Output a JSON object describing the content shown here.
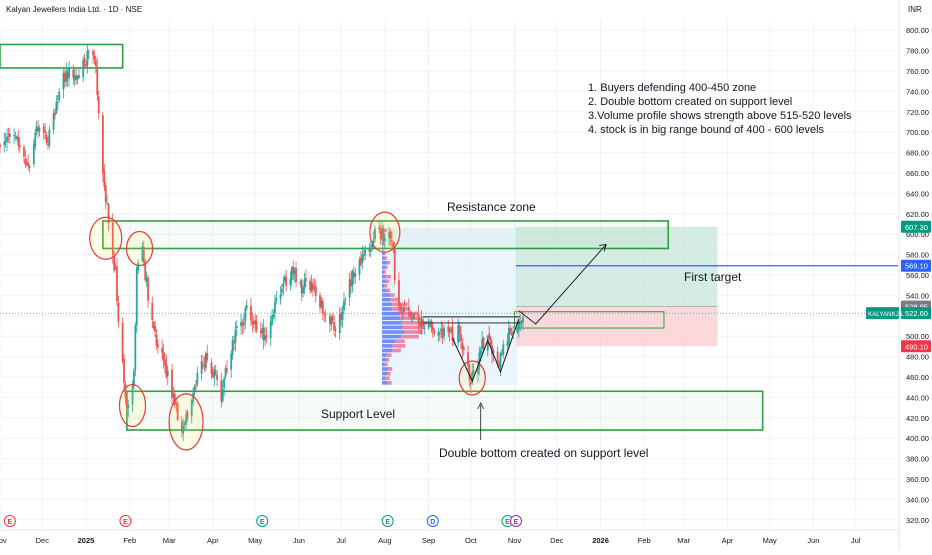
{
  "header": {
    "symbol_title": "Kalyan Jewellers India Ltd. · 1D · NSE",
    "currency": "INR"
  },
  "colors": {
    "up": "#26a69a",
    "down": "#ef5350",
    "zone": "#2ea043",
    "target_line": "#2962ff",
    "ring": "#e53935",
    "long_profit": "#b9e0cf",
    "long_stop": "#f9c7cb",
    "vp_up": "#4b6cf5",
    "vp_down": "#f06292",
    "vp_bg": "#e6f3fb"
  },
  "chart_data": {
    "type": "candlestick",
    "y_axis": {
      "min": 310,
      "max": 810,
      "ticks": [
        "320.00",
        "340.00",
        "360.00",
        "380.00",
        "400.00",
        "420.00",
        "440.00",
        "460.00",
        "480.00",
        "500.00",
        "520.00",
        "540.00",
        "560.00",
        "580.00",
        "600.00",
        "620.00",
        "640.00",
        "660.00",
        "680.00",
        "700.00",
        "720.00",
        "740.00",
        "760.00",
        "780.00",
        "800.00"
      ]
    },
    "x_axis": {
      "start": "2024-11-01",
      "end": "2026-07-31",
      "ticks": [
        {
          "label": "Nov",
          "date": "2024-11-01",
          "bold": false
        },
        {
          "label": "Dec",
          "date": "2024-12-01",
          "bold": false
        },
        {
          "label": "2025",
          "date": "2025-01-01",
          "bold": true
        },
        {
          "label": "Feb",
          "date": "2025-02-01",
          "bold": false
        },
        {
          "label": "Mar",
          "date": "2025-03-01",
          "bold": false
        },
        {
          "label": "Apr",
          "date": "2025-04-01",
          "bold": false
        },
        {
          "label": "May",
          "date": "2025-05-01",
          "bold": false
        },
        {
          "label": "Jun",
          "date": "2025-06-01",
          "bold": false
        },
        {
          "label": "Jul",
          "date": "2025-07-01",
          "bold": false
        },
        {
          "label": "Aug",
          "date": "2025-08-01",
          "bold": false
        },
        {
          "label": "Sep",
          "date": "2025-09-01",
          "bold": false
        },
        {
          "label": "Oct",
          "date": "2025-10-01",
          "bold": false
        },
        {
          "label": "Nov",
          "date": "2025-11-01",
          "bold": false
        },
        {
          "label": "Dec",
          "date": "2025-12-01",
          "bold": false
        },
        {
          "label": "2026",
          "date": "2026-01-01",
          "bold": true
        },
        {
          "label": "Feb",
          "date": "2026-02-01",
          "bold": false
        },
        {
          "label": "Mar",
          "date": "2026-03-01",
          "bold": false
        },
        {
          "label": "Apr",
          "date": "2026-04-01",
          "bold": false
        },
        {
          "label": "May",
          "date": "2026-05-01",
          "bold": false
        },
        {
          "label": "Jun",
          "date": "2026-06-01",
          "bold": false
        },
        {
          "label": "Jul",
          "date": "2026-07-01",
          "bold": false
        }
      ]
    },
    "price_path": [
      {
        "date": "2024-11-01",
        "price": 690
      },
      {
        "date": "2024-11-10",
        "price": 705
      },
      {
        "date": "2024-11-20",
        "price": 662
      },
      {
        "date": "2024-11-28",
        "price": 705
      },
      {
        "date": "2024-12-05",
        "price": 690
      },
      {
        "date": "2024-12-12",
        "price": 735
      },
      {
        "date": "2024-12-18",
        "price": 760
      },
      {
        "date": "2024-12-24",
        "price": 752
      },
      {
        "date": "2025-01-01",
        "price": 770
      },
      {
        "date": "2025-01-05",
        "price": 788
      },
      {
        "date": "2025-01-08",
        "price": 760
      },
      {
        "date": "2025-01-11",
        "price": 695
      },
      {
        "date": "2025-01-14",
        "price": 650
      },
      {
        "date": "2025-01-18",
        "price": 598
      },
      {
        "date": "2025-01-22",
        "price": 560
      },
      {
        "date": "2025-01-25",
        "price": 500
      },
      {
        "date": "2025-01-29",
        "price": 440
      },
      {
        "date": "2025-02-01",
        "price": 425
      },
      {
        "date": "2025-02-04",
        "price": 470
      },
      {
        "date": "2025-02-06",
        "price": 560
      },
      {
        "date": "2025-02-09",
        "price": 592
      },
      {
        "date": "2025-02-12",
        "price": 560
      },
      {
        "date": "2025-02-16",
        "price": 520
      },
      {
        "date": "2025-02-21",
        "price": 490
      },
      {
        "date": "2025-02-26",
        "price": 470
      },
      {
        "date": "2025-03-02",
        "price": 450
      },
      {
        "date": "2025-03-06",
        "price": 430
      },
      {
        "date": "2025-03-10",
        "price": 408
      },
      {
        "date": "2025-03-13",
        "price": 418
      },
      {
        "date": "2025-03-17",
        "price": 440
      },
      {
        "date": "2025-03-22",
        "price": 470
      },
      {
        "date": "2025-03-28",
        "price": 480
      },
      {
        "date": "2025-04-03",
        "price": 460
      },
      {
        "date": "2025-04-07",
        "price": 442
      },
      {
        "date": "2025-04-12",
        "price": 480
      },
      {
        "date": "2025-04-18",
        "price": 505
      },
      {
        "date": "2025-04-25",
        "price": 525
      },
      {
        "date": "2025-05-02",
        "price": 510
      },
      {
        "date": "2025-05-08",
        "price": 500
      },
      {
        "date": "2025-05-14",
        "price": 528
      },
      {
        "date": "2025-05-20",
        "price": 550
      },
      {
        "date": "2025-05-27",
        "price": 562
      },
      {
        "date": "2025-06-03",
        "price": 548
      },
      {
        "date": "2025-06-10",
        "price": 552
      },
      {
        "date": "2025-06-16",
        "price": 535
      },
      {
        "date": "2025-06-23",
        "price": 515
      },
      {
        "date": "2025-06-28",
        "price": 503
      },
      {
        "date": "2025-07-03",
        "price": 535
      },
      {
        "date": "2025-07-10",
        "price": 562
      },
      {
        "date": "2025-07-16",
        "price": 578
      },
      {
        "date": "2025-07-22",
        "price": 590
      },
      {
        "date": "2025-07-27",
        "price": 605
      },
      {
        "date": "2025-08-01",
        "price": 595
      },
      {
        "date": "2025-08-05",
        "price": 600
      },
      {
        "date": "2025-08-07",
        "price": 582
      },
      {
        "date": "2025-08-09",
        "price": 540
      },
      {
        "date": "2025-08-13",
        "price": 528
      },
      {
        "date": "2025-08-18",
        "price": 520
      },
      {
        "date": "2025-08-24",
        "price": 515
      },
      {
        "date": "2025-08-30",
        "price": 510
      },
      {
        "date": "2025-09-05",
        "price": 508
      },
      {
        "date": "2025-09-12",
        "price": 502
      },
      {
        "date": "2025-09-18",
        "price": 500
      },
      {
        "date": "2025-09-23",
        "price": 505
      },
      {
        "date": "2025-09-27",
        "price": 480
      },
      {
        "date": "2025-10-01",
        "price": 458
      },
      {
        "date": "2025-10-05",
        "price": 468
      },
      {
        "date": "2025-10-09",
        "price": 492
      },
      {
        "date": "2025-10-13",
        "price": 497
      },
      {
        "date": "2025-10-17",
        "price": 480
      },
      {
        "date": "2025-10-21",
        "price": 470
      },
      {
        "date": "2025-10-25",
        "price": 495
      },
      {
        "date": "2025-10-30",
        "price": 508
      },
      {
        "date": "2025-11-04",
        "price": 515
      },
      {
        "date": "2025-11-08",
        "price": 522.6
      }
    ],
    "zones": [
      {
        "name": "top-box",
        "from_date": "2024-11-01",
        "to_date": "2025-01-27",
        "low": 763,
        "high": 786
      },
      {
        "name": "resistance",
        "from_date": "2025-01-13",
        "to_date": "2026-02-18",
        "low": 586,
        "high": 613
      },
      {
        "name": "support",
        "from_date": "2025-01-30",
        "to_date": "2026-04-26",
        "low": 408,
        "high": 446
      },
      {
        "name": "breakout-box",
        "from_date": "2025-11-01",
        "to_date": "2026-02-15",
        "low": 508,
        "high": 524
      }
    ],
    "resistance_label": "Resistance zone",
    "support_label": "Support Level",
    "double_bottom_label": "Double bottom created on support level",
    "first_target_label": "First target",
    "target_level": 569.1,
    "position": {
      "from_date": "2025-11-02",
      "to_date": "2026-03-25",
      "entry": 528.95,
      "target": 607.3,
      "stop": 490.1
    },
    "volume_profile": {
      "from_date": "2025-07-30",
      "to_date": "2025-11-03",
      "low": 452,
      "high": 606,
      "point_of_control": 512
    },
    "annotations": [
      "1. Buyers defending 400-450 zone",
      "2. Double bottom created on support level",
      "3.Volume profile shows strength above 515-520 levels",
      "4. stock is in big range bound of 400 - 600 levels"
    ],
    "price_labels": [
      {
        "value": 607.3,
        "text": "607.30",
        "color": "#089981"
      },
      {
        "value": 569.1,
        "text": "569.10",
        "color": "#2962ff"
      },
      {
        "value": 528.95,
        "text": "528.95",
        "color": "#787b86"
      },
      {
        "value": 522.6,
        "text": "522.60",
        "color": "#089981"
      },
      {
        "value": 490.1,
        "text": "490.10",
        "color": "#f23645"
      }
    ],
    "last_price_tag": {
      "symbol": "KALYANKJIL",
      "value": 522.6
    },
    "events": [
      {
        "date": "2024-11-08",
        "glyph": "E",
        "color": "#f23645"
      },
      {
        "date": "2025-01-29",
        "glyph": "E",
        "color": "#f23645"
      },
      {
        "date": "2025-05-06",
        "glyph": "E",
        "color": "#089981"
      },
      {
        "date": "2025-08-03",
        "glyph": "E",
        "color": "#089981"
      },
      {
        "date": "2025-09-04",
        "glyph": "D",
        "color": "#2962ff"
      },
      {
        "date": "2025-10-27",
        "glyph": "E",
        "color": "#089981"
      },
      {
        "date": "2025-11-02",
        "glyph": "E",
        "color": "#9c27b0"
      }
    ]
  }
}
